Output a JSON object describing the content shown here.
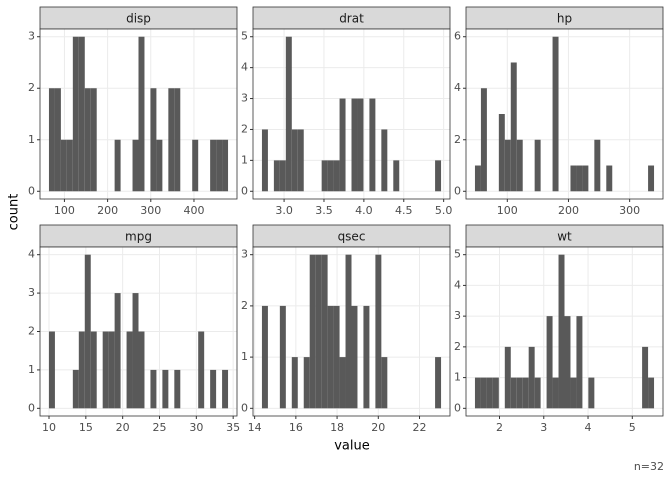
{
  "chart_data": [
    {
      "type": "histogram",
      "title": "disp",
      "color": "#595959",
      "grid": true,
      "bins": [
        64.19,
        78.01,
        91.84,
        105.66,
        119.49,
        133.31,
        147.13,
        160.96,
        174.78,
        188.61,
        202.43,
        216.26,
        230.08,
        243.9,
        257.73,
        271.55,
        285.38,
        299.2,
        313.02,
        326.85,
        340.67,
        354.5,
        368.32,
        382.14,
        395.97,
        409.79,
        423.62,
        437.44,
        451.27,
        465.09,
        478.91
      ],
      "values": [
        2,
        2,
        1,
        1,
        3,
        3,
        2,
        2,
        0,
        0,
        0,
        1,
        0,
        0,
        1,
        3,
        0,
        2,
        1,
        0,
        2,
        2,
        0,
        0,
        1,
        0,
        0,
        1,
        1,
        1
      ],
      "xlim": [
        43.45,
        499.65
      ],
      "xticks": [
        100,
        200,
        300,
        400
      ],
      "ylim": [
        -0.15,
        3.15
      ],
      "yticks": [
        0,
        1,
        2,
        3
      ]
    },
    {
      "type": "histogram",
      "title": "drat",
      "color": "#595959",
      "grid": true,
      "bins": [
        2.7226,
        2.7974,
        2.8722,
        2.9471,
        3.0219,
        3.0967,
        3.1716,
        3.2464,
        3.3212,
        3.396,
        3.4709,
        3.5457,
        3.6205,
        3.6954,
        3.7702,
        3.845,
        3.9198,
        3.9947,
        4.0695,
        4.1443,
        4.2191,
        4.294,
        4.3688,
        4.4436,
        4.5185,
        4.5933,
        4.6681,
        4.7429,
        4.8178,
        4.8926,
        4.9674
      ],
      "values": [
        2,
        0,
        1,
        1,
        5,
        2,
        2,
        0,
        0,
        0,
        1,
        1,
        1,
        3,
        0,
        3,
        3,
        0,
        3,
        0,
        2,
        0,
        1,
        0,
        0,
        0,
        0,
        0,
        0,
        1
      ],
      "xlim": [
        2.6104,
        5.0796
      ],
      "xticks": [
        {
          "value": 3,
          "label": "3.0"
        },
        3.5,
        {
          "value": 4,
          "label": "4.0"
        },
        4.5,
        {
          "value": 5,
          "label": "5.0"
        }
      ],
      "ylim": [
        -0.25,
        5.25
      ],
      "yticks": [
        0,
        1,
        2,
        3,
        4,
        5
      ]
    },
    {
      "type": "histogram",
      "title": "hp",
      "color": "#595959",
      "grid": true,
      "bins": [
        47.12,
        56.88,
        66.64,
        76.4,
        86.16,
        95.91,
        105.67,
        115.43,
        125.19,
        134.95,
        144.71,
        154.47,
        164.22,
        173.98,
        183.74,
        193.5,
        203.26,
        213.02,
        222.78,
        232.53,
        242.29,
        252.05,
        261.81,
        271.57,
        281.33,
        291.09,
        300.84,
        310.6,
        320.36,
        330.12,
        339.88
      ],
      "values": [
        1,
        4,
        0,
        0,
        3,
        2,
        5,
        2,
        0,
        0,
        2,
        0,
        0,
        6,
        0,
        0,
        1,
        1,
        1,
        0,
        2,
        0,
        1,
        0,
        0,
        0,
        0,
        0,
        0,
        1
      ],
      "xlim": [
        32.48,
        354.52
      ],
      "xticks": [
        100,
        200,
        300
      ],
      "ylim": [
        -0.3,
        6.3
      ],
      "yticks": [
        0,
        2,
        4,
        6
      ]
    },
    {
      "type": "histogram",
      "title": "mpg",
      "color": "#595959",
      "grid": true,
      "bins": [
        9.995,
        10.805,
        11.616,
        12.426,
        13.236,
        14.047,
        14.857,
        15.667,
        16.478,
        17.288,
        18.098,
        18.909,
        19.719,
        20.53,
        21.34,
        22.15,
        22.961,
        23.771,
        24.581,
        25.392,
        26.202,
        27.012,
        27.823,
        28.633,
        29.443,
        30.254,
        31.064,
        31.874,
        32.685,
        33.495,
        34.305
      ],
      "values": [
        2,
        0,
        0,
        0,
        1,
        2,
        4,
        2,
        0,
        2,
        2,
        3,
        0,
        2,
        3,
        2,
        0,
        1,
        0,
        1,
        0,
        1,
        0,
        0,
        0,
        2,
        0,
        1,
        0,
        1
      ],
      "xlim": [
        8.779,
        35.52
      ],
      "xticks": [
        10,
        15,
        20,
        25,
        30,
        35
      ],
      "ylim": [
        -0.2,
        4.2
      ],
      "yticks": [
        0,
        1,
        2,
        3,
        4
      ]
    },
    {
      "type": "histogram",
      "title": "qsec",
      "color": "#595959",
      "grid": true,
      "bins": [
        14.355,
        14.645,
        14.934,
        15.224,
        15.514,
        15.803,
        16.093,
        16.383,
        16.672,
        16.962,
        17.252,
        17.541,
        17.831,
        18.121,
        18.41,
        18.7,
        18.99,
        19.279,
        19.569,
        19.859,
        20.148,
        20.438,
        20.728,
        21.017,
        21.307,
        21.597,
        21.886,
        22.176,
        22.466,
        22.755,
        23.045
      ],
      "values": [
        2,
        0,
        0,
        2,
        0,
        1,
        0,
        1,
        3,
        3,
        3,
        2,
        2,
        1,
        3,
        2,
        0,
        2,
        0,
        3,
        1,
        0,
        0,
        0,
        0,
        0,
        0,
        0,
        0,
        1
      ],
      "xlim": [
        13.921,
        23.479
      ],
      "xticks": [
        14,
        16,
        18,
        20,
        22
      ],
      "ylim": [
        -0.15,
        3.15
      ],
      "yticks": [
        0,
        1,
        2,
        3
      ]
    },
    {
      "type": "histogram",
      "title": "wt",
      "color": "#595959",
      "grid": true,
      "bins": [
        1.4456,
        1.5804,
        1.7153,
        1.8502,
        1.985,
        2.1199,
        2.2547,
        2.3896,
        2.5245,
        2.6593,
        2.7942,
        2.9291,
        3.0639,
        3.1988,
        3.3336,
        3.4685,
        3.6034,
        3.7382,
        3.8731,
        4.008,
        4.1428,
        4.2777,
        4.4125,
        4.5474,
        4.6823,
        4.8171,
        4.952,
        5.0869,
        5.2217,
        5.3566,
        5.4914
      ],
      "values": [
        1,
        1,
        1,
        1,
        0,
        2,
        1,
        1,
        1,
        2,
        1,
        0,
        3,
        1,
        5,
        3,
        1,
        3,
        0,
        1,
        0,
        0,
        0,
        0,
        0,
        0,
        0,
        0,
        2,
        1
      ],
      "xlim": [
        1.2433,
        5.6937
      ],
      "xticks": [
        2,
        3,
        4,
        5
      ],
      "ylim": [
        -0.25,
        5.25
      ],
      "yticks": [
        0,
        1,
        2,
        3,
        4,
        5
      ]
    }
  ],
  "x_label": "value",
  "y_label": "count",
  "caption": "n=32"
}
